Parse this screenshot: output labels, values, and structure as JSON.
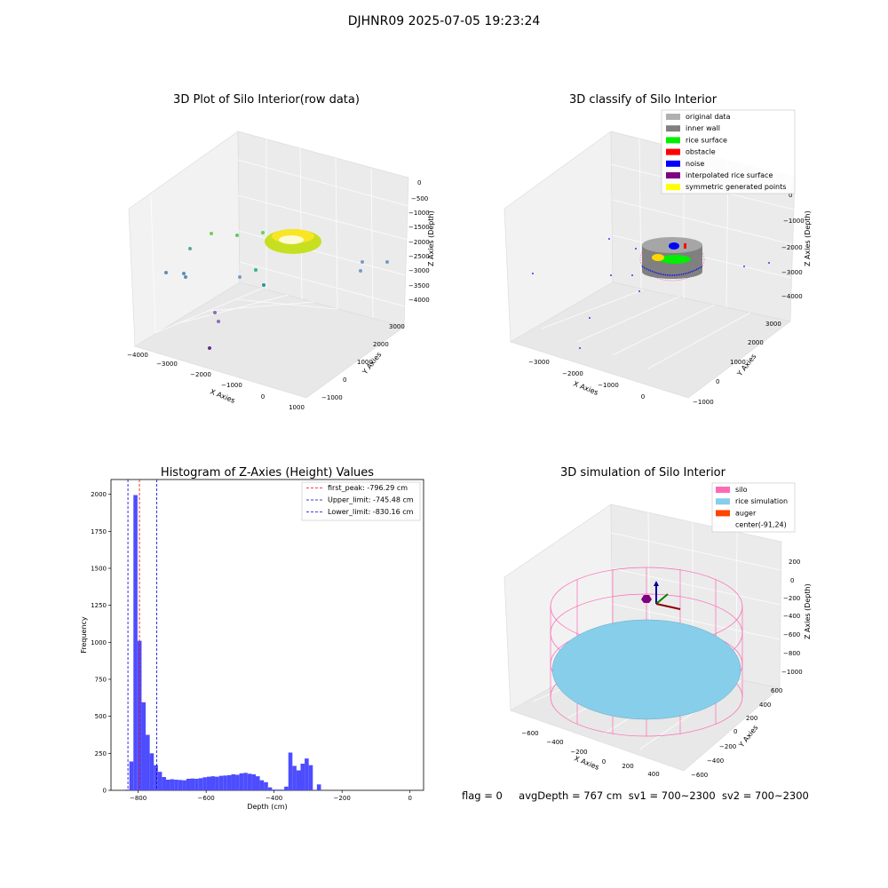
{
  "figure": {
    "suptitle": "DJHNR09 2025-07-05 19:23:24"
  },
  "footer": {
    "flag": "flag = 0",
    "avg_depth": "avgDepth = 767 cm",
    "sv1": "sv1 = 700~2300",
    "sv2": "sv2 = 700~2300"
  },
  "colors": {
    "hist_bar": "#4d4dff",
    "silo_wire": "#ff69b4",
    "rice_sim": "#87ceeb",
    "auger": "#ff4500",
    "first_peak_line": "#ff0000",
    "limit_lines": "#0000cc"
  },
  "chart_data": [
    {
      "type": "scatter",
      "panel": "top-left",
      "title": "3D Plot of Silo Interior(row data)",
      "xlabel": "X Axies",
      "ylabel": "Y Axies",
      "zlabel": "Z Axies (Depth)",
      "x_ticks": [
        "−4000",
        "−3000",
        "−2000",
        "−1000",
        "0",
        "1000"
      ],
      "y_ticks": [
        "−1000",
        "0",
        "1000",
        "2000",
        "3000"
      ],
      "z_ticks": [
        "0",
        "−500",
        "−1000",
        "−1500",
        "−2000",
        "−2500",
        "−3000",
        "−3500",
        "−4000"
      ],
      "colormap": "viridis by depth",
      "note": "dense ring of points near Z ≈ -2000 with scattered outliers"
    },
    {
      "type": "scatter",
      "panel": "top-right",
      "title": "3D classify of Silo Interior",
      "xlabel": "X Axies",
      "ylabel": "Y Axies",
      "zlabel": "Z Axies (Depth)",
      "x_ticks": [
        "−3000",
        "−2000",
        "−1000",
        "0"
      ],
      "y_ticks": [
        "−1000",
        "0",
        "1000",
        "2000",
        "3000"
      ],
      "z_ticks": [
        "0",
        "−1000",
        "−2000",
        "−3000",
        "−4000"
      ],
      "legend_position": "top-right",
      "legend": [
        {
          "label": "original data",
          "color": "#b0b0b0"
        },
        {
          "label": "inner wall",
          "color": "#808080"
        },
        {
          "label": "rice surface",
          "color": "#00ee00"
        },
        {
          "label": "obstacle",
          "color": "#ff0000"
        },
        {
          "label": "noise",
          "color": "#0000ff"
        },
        {
          "label": "interpolated rice surface",
          "color": "#800080"
        },
        {
          "label": "symmetric generated points",
          "color": "#ffff00"
        }
      ]
    },
    {
      "type": "bar",
      "panel": "bottom-left",
      "title": "Histogram of Z-Axies (Height) Values",
      "xlabel": "Depth (cm)",
      "ylabel": "Frequency",
      "xlim": [
        -880,
        40
      ],
      "ylim": [
        0,
        2100
      ],
      "x_ticks": [
        -800,
        -600,
        -400,
        -200,
        0
      ],
      "x_tick_labels": [
        "−800",
        "−600",
        "−400",
        "−200",
        "0"
      ],
      "y_ticks": [
        0,
        250,
        500,
        750,
        1000,
        1250,
        1500,
        1750,
        2000
      ],
      "bin_width": 12,
      "bin_start": -838,
      "values": [
        5,
        195,
        1995,
        1010,
        595,
        375,
        250,
        170,
        125,
        90,
        72,
        75,
        72,
        70,
        68,
        78,
        80,
        78,
        82,
        88,
        92,
        95,
        92,
        98,
        100,
        102,
        108,
        105,
        115,
        118,
        112,
        108,
        95,
        68,
        55,
        20,
        5,
        5,
        5,
        25,
        255,
        165,
        135,
        180,
        215,
        170,
        0,
        40
      ],
      "vlines": [
        {
          "label": "first_peak: -796.29 cm",
          "x": -796.29,
          "style": "dashed",
          "color": "#ff0000"
        },
        {
          "label": "Upper_limit: -745.48 cm",
          "x": -745.48,
          "style": "dashed",
          "color": "#0000cc"
        },
        {
          "label": "Lower_limit: -830.16 cm",
          "x": -830.16,
          "style": "dashed",
          "color": "#0000cc"
        }
      ],
      "legend_position": "top-right"
    },
    {
      "type": "scatter",
      "panel": "bottom-right",
      "title": "3D simulation of Silo Interior",
      "xlabel": "X Axies",
      "ylabel": "Y Axies",
      "zlabel": "Z Axies (Depth)",
      "x_ticks": [
        "−600",
        "−400",
        "−200",
        "0",
        "200",
        "400"
      ],
      "y_ticks": [
        "−600",
        "−400",
        "−200",
        "0",
        "200",
        "400",
        "600"
      ],
      "z_ticks": [
        "200",
        "0",
        "−200",
        "−400",
        "−600",
        "−800",
        "−1000"
      ],
      "legend_position": "top-right",
      "legend": [
        {
          "label": "silo",
          "color": "#ff69b4"
        },
        {
          "label": "rice simulation",
          "color": "#87ceeb"
        },
        {
          "label": "auger",
          "color": "#ff4500"
        },
        {
          "label": "center(-91,24)",
          "color": "none"
        }
      ]
    }
  ]
}
